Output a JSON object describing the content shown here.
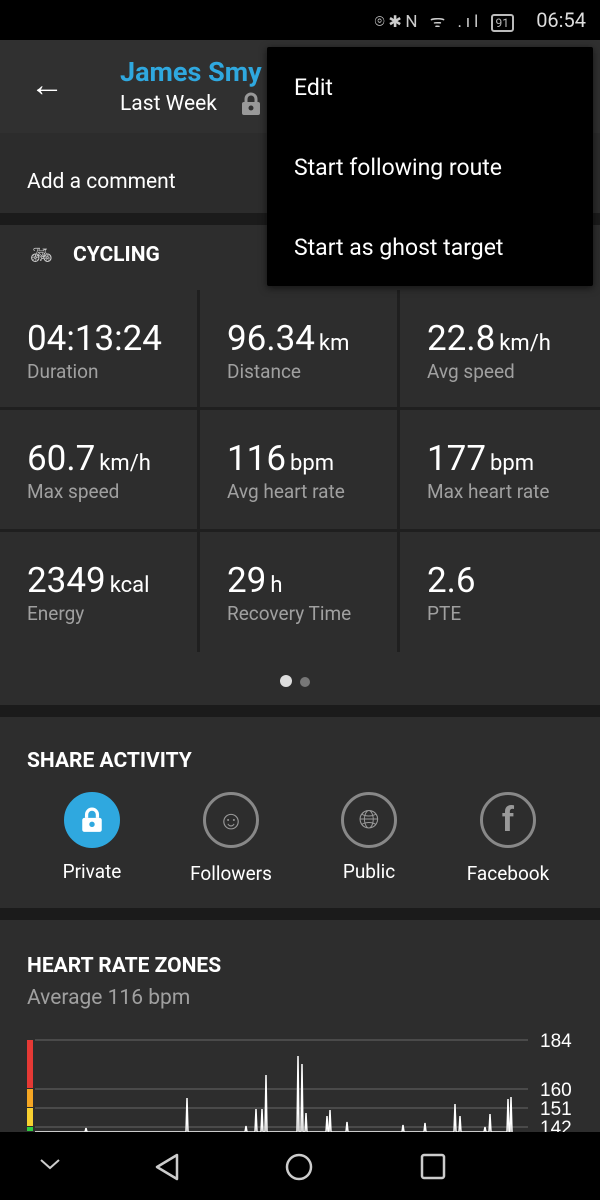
{
  "status_bar": {
    "time": "06:54",
    "battery": "91",
    "icons": [
      "location-icon",
      "bluetooth-icon",
      "nfc-icon",
      "wifi-icon",
      "signal-icon",
      "battery-icon"
    ]
  },
  "header": {
    "title": "James Smy",
    "subtitle": "Last Week",
    "title_color": "#2fa8df"
  },
  "comment": {
    "placeholder": "Add a comment"
  },
  "activity": {
    "type": "CYCLING",
    "stats": [
      {
        "value": "04:13:24",
        "unit": "",
        "label": "Duration"
      },
      {
        "value": "96.34",
        "unit": "km",
        "label": "Distance"
      },
      {
        "value": "22.8",
        "unit": "km/h",
        "label": "Avg speed"
      },
      {
        "value": "60.7",
        "unit": "km/h",
        "label": "Max speed"
      },
      {
        "value": "116",
        "unit": "bpm",
        "label": "Avg heart rate"
      },
      {
        "value": "177",
        "unit": "bpm",
        "label": "Max heart rate"
      },
      {
        "value": "2349",
        "unit": "kcal",
        "label": "Energy"
      },
      {
        "value": "29",
        "unit": "h",
        "label": "Recovery Time"
      },
      {
        "value": "2.6",
        "unit": "",
        "label": "PTE"
      }
    ],
    "page": 1,
    "pages": 2
  },
  "share": {
    "title": "SHARE ACTIVITY",
    "selected": "Private",
    "options": [
      {
        "label": "Private",
        "icon": "lock-icon"
      },
      {
        "label": "Followers",
        "icon": "followers-icon"
      },
      {
        "label": "Public",
        "icon": "globe-icon"
      },
      {
        "label": "Facebook",
        "icon": "facebook-icon"
      }
    ]
  },
  "heart_rate": {
    "title": "HEART RATE ZONES",
    "subtitle": "Average 116 bpm",
    "zone_ticks": [
      "184",
      "160",
      "151",
      "142"
    ],
    "zone_colors": [
      "#e53935",
      "#f5a623",
      "#f8d030",
      "#2ecc40"
    ]
  },
  "menu": {
    "items": [
      "Edit",
      "Start following route",
      "Start as ghost target"
    ]
  },
  "accent": "#2fa8df"
}
